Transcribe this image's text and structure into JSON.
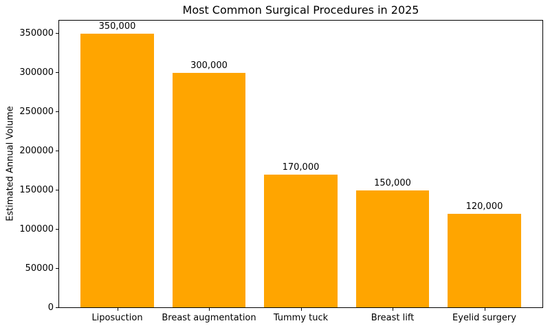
{
  "chart_data": {
    "type": "bar",
    "title": "Most Common Surgical Procedures in 2025",
    "xlabel": "",
    "ylabel": "Estimated Annual Volume",
    "categories": [
      "Liposuction",
      "Breast augmentation",
      "Tummy tuck",
      "Breast lift",
      "Eyelid surgery"
    ],
    "values": [
      350000,
      300000,
      170000,
      150000,
      120000
    ],
    "value_labels": [
      "350,000",
      "300,000",
      "170,000",
      "150,000",
      "120,000"
    ],
    "yticks": [
      0,
      50000,
      100000,
      150000,
      200000,
      250000,
      300000,
      350000
    ],
    "ytick_labels": [
      "0",
      "50000",
      "100000",
      "150000",
      "200000",
      "250000",
      "300000",
      "350000"
    ],
    "ylim": [
      0,
      367500
    ],
    "bar_color": "#FFA500",
    "text_color": "#000000",
    "spine_color": "#000000",
    "background_color": "#FFFFFF",
    "grid": false,
    "legend": "none"
  }
}
